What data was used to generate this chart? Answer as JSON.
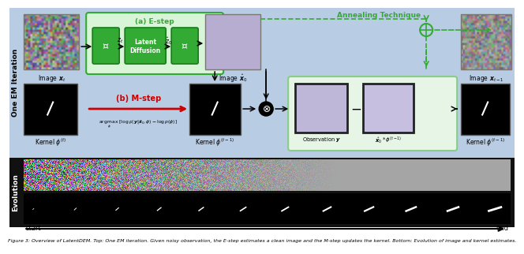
{
  "caption": "Figure 3: Overview of LatentDEM. Top: One EM iteration. Given noisy observation, the E-step estimates a clean image and the M-step updates the kernel. Bottom: Evolution of image and kernel estimates.",
  "em_iteration_label": "One EM Iteration",
  "evolution_label": "Evolution",
  "estep_label": "(a) E-step",
  "mstep_label": "(b) M-step",
  "annealing_label": "Annealing Technique",
  "image_xt_label": "Image $\\boldsymbol{x}_t$",
  "image_xhat0_label": "Image $\\hat{\\boldsymbol{x}}_0$",
  "image_xt1_label": "Image $\\boldsymbol{x}_{t-1}$",
  "kernel_phi_t_label": "Kernel $\\phi^{(t)}$",
  "kernel_phi_t1_label": "Kernel $\\phi^{(t-1)}$",
  "kernel_phi_t1_right_label": "Kernel $\\phi^{(t-1)}$",
  "observation_label": "Observation $\\boldsymbol{y}$",
  "xhat_conv_label": "$\\hat{\\boldsymbol{x}}_0 * \\phi^{(t-1)}$",
  "argmax_label": "$\\underset{\\phi}{\\arg\\max}\\;[\\log p(\\boldsymbol{y}|\\hat{\\boldsymbol{x}}_0, \\phi) - \\log p(\\phi)]$",
  "start_label": "start",
  "end_label": "end",
  "encoder_label": "$\\mathcal{E}$",
  "decoder_label": "$\\mathcal{D}$",
  "zt_label": "$z_t$",
  "zhat0_label": "$\\hat{z}_0$",
  "latent_diffusion_label": "Latent\nDiffusion",
  "top_bg": "#b8cce4",
  "green_color": "#33aa33",
  "red_color": "#cc0000"
}
